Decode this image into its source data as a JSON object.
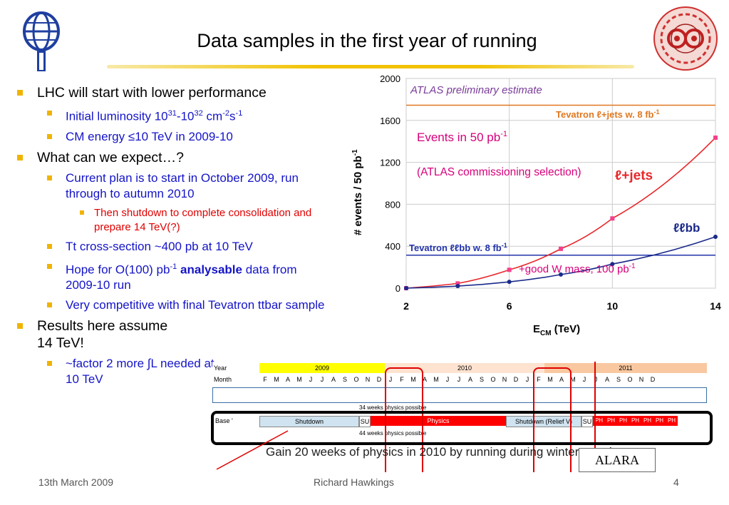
{
  "title": "Data samples in the first year of running",
  "bullets": {
    "b1": "LHC will start with lower performance",
    "lumi_pre": "Initial luminosity 10",
    "lumi_e1": "31",
    "lumi_mid": "-10",
    "lumi_e2": "32",
    "lumi_cm": " cm",
    "lumi_e3": "-2",
    "lumi_s": "s",
    "lumi_e4": "-1",
    "cm_energy": "CM energy ≤10 TeV in 2009-10",
    "b2": "What can we expect…?",
    "plan": "Current plan is to start in October 2009, run through to autumn 2010",
    "shutdown": "Then shutdown to complete consolidation and prepare 14 TeV(?)",
    "tt": "Tt cross-section ~400 pb at 10 TeV",
    "hope_pre": "Hope for O(100) pb",
    "hope_exp": "-1",
    "hope_bold": "analysable",
    "hope_post": "data  from 2009-10 run",
    "competitive": "Very competitive with final Tevatron ttbar sample",
    "b3": "Results here assume 14 TeV!",
    "factor": "~factor 2 more ∫L needed at 10 TeV"
  },
  "footer": {
    "date": "13th March 2009",
    "author": "Richard Hawkings",
    "page": "4"
  },
  "chart_data": {
    "type": "line",
    "title": "ATLAS preliminary estimate",
    "xlabel": "E",
    "xlabel_sub": "CM",
    "xlabel_unit": " (TeV)",
    "ylabel": "# events / 50 pb",
    "ylabel_exp": "-1",
    "xlim": [
      2,
      14
    ],
    "ylim": [
      0,
      2000
    ],
    "xticks": [
      "2",
      "6",
      "10",
      "14"
    ],
    "yticks": [
      "0",
      "400",
      "800",
      "1200",
      "1600",
      "2000"
    ],
    "series": [
      {
        "name": "ℓ+jets",
        "color": "#e8272a",
        "x": [
          2,
          4,
          6,
          8,
          10,
          14
        ],
        "y": [
          0,
          45,
          175,
          375,
          665,
          1435
        ]
      },
      {
        "name": "ℓℓbb",
        "color": "#1a2a8a",
        "x": [
          2,
          4,
          6,
          8,
          10,
          14
        ],
        "y": [
          0,
          20,
          60,
          130,
          230,
          490
        ]
      }
    ],
    "hlines": [
      {
        "label": "Tevatron ℓ+jets w. 8 fb",
        "exp": "-1",
        "y": 1745,
        "color": "#e07820"
      },
      {
        "label": "Tevatron ℓℓbb w. 8 fb",
        "exp": "-1",
        "y": 315,
        "color": "#2233aa"
      }
    ],
    "annotations": {
      "events_pre": "Events in 50 pb",
      "events_exp": "-1",
      "selection": "(ATLAS commissioning selection)",
      "wmass_pre": "+good W mass, 100 pb",
      "wmass_exp": "-1"
    }
  },
  "schedule": {
    "year_label": "Year",
    "month_label": "Month",
    "years": [
      "2009",
      "2010",
      "2011"
    ],
    "months": [
      "F",
      "M",
      "A",
      "M",
      "J",
      "J",
      "A",
      "S",
      "O",
      "N",
      "D",
      "J",
      "F",
      "M",
      "A",
      "M",
      "J",
      "J",
      "A",
      "S",
      "O",
      "N",
      "D",
      "J",
      "F",
      "M",
      "A",
      "M",
      "J",
      "J",
      "A",
      "S",
      "O",
      "N",
      "D"
    ],
    "weeks_top": "34 weeks physics possible",
    "base_label": "Base '",
    "shutdown": "Shutdown",
    "su": "SU",
    "physics": "Physics",
    "shutdown_relief": "Shutdown (Relief V)",
    "su2": "SU",
    "ph": "PH",
    "weeks_bottom": "44 weeks physics possible",
    "gain": "Gain 20 weeks of physics  in 2010 by running during winter months",
    "alara": "ALARA"
  }
}
